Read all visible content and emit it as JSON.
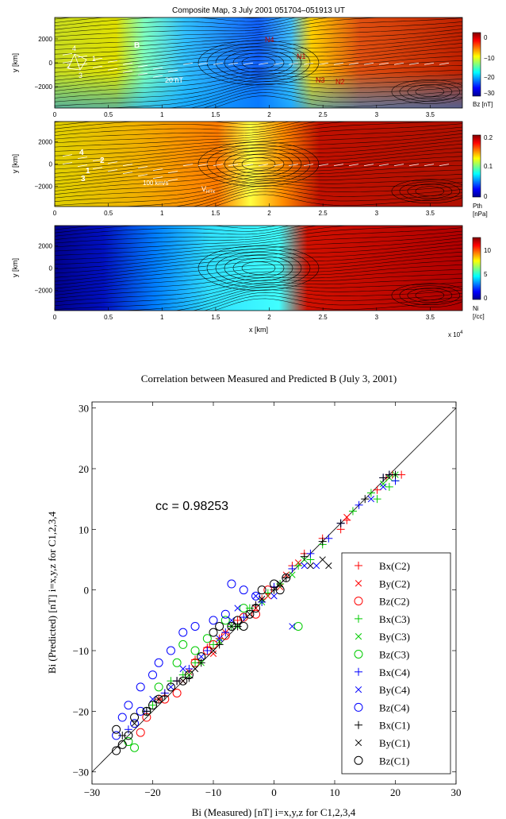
{
  "chart_data": [
    {
      "type": "heatmap",
      "title": "Composite Map,  3 July 2001  051704–051913 UT",
      "ylabel": "y [km]",
      "xlim": [
        0,
        38000
      ],
      "ylim": [
        -3800,
        3800
      ],
      "x_ticks": [
        "0",
        "0.5",
        "1",
        "1.5",
        "2",
        "2.5",
        "3",
        "3.5"
      ],
      "y_ticks": [
        "2000",
        "0",
        "−2000"
      ],
      "colorbar": {
        "label": "Bz [nT]",
        "range": [
          -30,
          10
        ],
        "ticks": [
          "0",
          "−10",
          "−20",
          "−30"
        ]
      },
      "annotations": [
        "B",
        "20 nT",
        "4",
        "2",
        "1",
        "3",
        "N4",
        "N1",
        "N3",
        "N2"
      ]
    },
    {
      "type": "heatmap",
      "ylabel": "y [km]",
      "xlim": [
        0,
        38000
      ],
      "ylim": [
        -3800,
        3800
      ],
      "x_ticks": [
        "0",
        "0.5",
        "1",
        "1.5",
        "2",
        "2.5",
        "3",
        "3.5"
      ],
      "y_ticks": [
        "2000",
        "0",
        "−2000"
      ],
      "colorbar": {
        "label": "Pth [nPa]",
        "range": [
          0,
          0.2
        ],
        "ticks": [
          "0.2",
          "0.1",
          "0"
        ]
      },
      "annotations": [
        "4",
        "2",
        "1",
        "3",
        "100 km/s",
        "V",
        "HTx"
      ]
    },
    {
      "type": "heatmap",
      "ylabel": "y [km]",
      "xlabel": "x [km]",
      "x_scale_note": "x 10",
      "x_scale_exp": "4",
      "xlim": [
        0,
        38000
      ],
      "ylim": [
        -3800,
        3800
      ],
      "x_ticks": [
        "0",
        "0.5",
        "1",
        "1.5",
        "2",
        "2.5",
        "3",
        "3.5"
      ],
      "y_ticks": [
        "2000",
        "0",
        "−2000"
      ],
      "colorbar": {
        "label": "Ni [/cc]",
        "range": [
          0,
          13
        ],
        "ticks": [
          "10",
          "5",
          "0"
        ]
      }
    },
    {
      "type": "scatter",
      "title": "Correlation between Measured and Predicted B (July 3, 2001)",
      "xlabel": "Bi (Measured) [nT] i=x,y,z for C1,2,3,4",
      "ylabel": "Bi (Predicted) [nT] i=x,y,z for C1,2,3,4",
      "xlim": [
        -30,
        30
      ],
      "ylim": [
        -32,
        31
      ],
      "x_ticks": [
        -30,
        -20,
        -10,
        0,
        10,
        20,
        30
      ],
      "y_ticks": [
        -30,
        -20,
        -10,
        0,
        10,
        20,
        30
      ],
      "x_tick_labels": [
        "−30",
        "−20",
        "−10",
        "0",
        "10",
        "20",
        "30"
      ],
      "y_tick_labels": [
        "−30",
        "−20",
        "−10",
        "0",
        "10",
        "20",
        "30"
      ],
      "annotation": "cc = 0.98253",
      "legend_position": "bottom-right",
      "series": [
        {
          "name": "Bx(C2)",
          "marker": "plus",
          "color": "#ff0000",
          "points": [
            [
              18.5,
              18.5
            ],
            [
              19.5,
              19
            ],
            [
              17,
              16.5
            ],
            [
              21,
              19
            ],
            [
              12,
              11.5
            ],
            [
              11,
              10
            ],
            [
              8,
              8.5
            ],
            [
              5,
              6
            ],
            [
              3,
              4
            ],
            [
              0,
              0.5
            ],
            [
              -2,
              -1.5
            ],
            [
              -6,
              -5
            ],
            [
              -9,
              -8
            ],
            [
              -11,
              -9.5
            ],
            [
              -13,
              -11.5
            ],
            [
              -16,
              -15
            ],
            [
              -18,
              -17
            ],
            [
              -19,
              -18
            ]
          ]
        },
        {
          "name": "By(C2)",
          "marker": "x",
          "color": "#ff0000",
          "points": [
            [
              12,
              12
            ],
            [
              2,
              2.5
            ],
            [
              -1,
              -1
            ],
            [
              -3,
              -3
            ],
            [
              -8,
              -7
            ],
            [
              -10,
              -10.5
            ],
            [
              -14,
              -13.5
            ],
            [
              -15,
              -15
            ],
            [
              4,
              4.5
            ],
            [
              1,
              0.5
            ]
          ]
        },
        {
          "name": "Bz(C2)",
          "marker": "circle",
          "color": "#ff0000",
          "points": [
            [
              -22,
              -23.5
            ],
            [
              -21,
              -21
            ],
            [
              -18,
              -18
            ],
            [
              -16,
              -17
            ],
            [
              -13,
              -12
            ],
            [
              -11,
              -10
            ],
            [
              -10,
              -9
            ],
            [
              -8,
              -7.5
            ],
            [
              -5,
              -4.5
            ],
            [
              -3,
              -4
            ],
            [
              -1,
              0
            ]
          ]
        },
        {
          "name": "Bx(C3)",
          "marker": "plus",
          "color": "#00cc00",
          "points": [
            [
              20,
              18
            ],
            [
              19,
              17
            ],
            [
              16,
              16
            ],
            [
              17,
              15
            ],
            [
              13,
              13
            ],
            [
              8,
              7.5
            ],
            [
              6,
              5
            ],
            [
              4,
              4
            ],
            [
              1,
              1
            ],
            [
              -1,
              -0.5
            ],
            [
              -4,
              -3
            ],
            [
              -7,
              -6
            ],
            [
              -10,
              -9
            ],
            [
              -13,
              -12
            ],
            [
              -15,
              -14
            ],
            [
              -17,
              -15
            ],
            [
              -20,
              -19
            ]
          ]
        },
        {
          "name": "By(C3)",
          "marker": "x",
          "color": "#00cc00",
          "points": [
            [
              18,
              17.5
            ],
            [
              19,
              18.5
            ],
            [
              20,
              19
            ],
            [
              5,
              5
            ],
            [
              3,
              2.5
            ],
            [
              -2,
              -2
            ],
            [
              -6,
              -6
            ],
            [
              -9,
              -8.5
            ],
            [
              -12,
              -12
            ],
            [
              -14,
              -14
            ]
          ]
        },
        {
          "name": "Bz(C3)",
          "marker": "circle",
          "color": "#00cc00",
          "points": [
            [
              4,
              -6
            ],
            [
              -11,
              -8
            ],
            [
              -13,
              -10
            ],
            [
              -15,
              -9
            ],
            [
              -16,
              -12
            ],
            [
              -19,
              -16
            ],
            [
              -21,
              -20
            ],
            [
              -23,
              -26
            ],
            [
              -24,
              -25
            ],
            [
              -5,
              -3
            ],
            [
              -8,
              -5
            ]
          ]
        },
        {
          "name": "Bx(C4)",
          "marker": "plus",
          "color": "#0000ff",
          "points": [
            [
              19,
              19
            ],
            [
              18,
              18.5
            ],
            [
              20,
              18
            ],
            [
              14,
              14
            ],
            [
              11,
              11
            ],
            [
              9,
              8.5
            ],
            [
              6,
              6
            ],
            [
              3,
              3.5
            ],
            [
              0,
              0.5
            ],
            [
              -2,
              -2
            ],
            [
              -5,
              -4.5
            ],
            [
              -8,
              -7
            ],
            [
              -11,
              -10
            ],
            [
              -14,
              -13
            ],
            [
              -16,
              -15
            ],
            [
              -18,
              -17
            ],
            [
              -21,
              -20
            ],
            [
              -24,
              -23
            ]
          ]
        },
        {
          "name": "By(C4)",
          "marker": "x",
          "color": "#0000ff",
          "points": [
            [
              18,
              17
            ],
            [
              16,
              15
            ],
            [
              7,
              4
            ],
            [
              3,
              -6
            ],
            [
              5,
              4
            ],
            [
              0,
              -1
            ],
            [
              -3,
              -1
            ],
            [
              -6,
              -3
            ],
            [
              -7,
              -5
            ],
            [
              -9,
              -8
            ],
            [
              -12,
              -11
            ],
            [
              -15,
              -13
            ],
            [
              -17,
              -16
            ],
            [
              -20,
              -18
            ]
          ]
        },
        {
          "name": "Bz(C4)",
          "marker": "circle",
          "color": "#0000ff",
          "points": [
            [
              -7,
              1
            ],
            [
              -5,
              0
            ],
            [
              -3,
              -1
            ],
            [
              -8,
              -4
            ],
            [
              -13,
              -6
            ],
            [
              -10,
              -5
            ],
            [
              -15,
              -7
            ],
            [
              -17,
              -10
            ],
            [
              -19,
              -12
            ],
            [
              -20,
              -14
            ],
            [
              -22,
              -16
            ],
            [
              -24,
              -19
            ],
            [
              -25,
              -21
            ],
            [
              -26,
              -24
            ],
            [
              -23,
              -22
            ],
            [
              -22,
              -20
            ]
          ]
        },
        {
          "name": "Bx(C1)",
          "marker": "plus",
          "color": "#000000",
          "points": [
            [
              19,
              19
            ],
            [
              18,
              18.5
            ],
            [
              20,
              19
            ],
            [
              15,
              15
            ],
            [
              11,
              11
            ],
            [
              8,
              8
            ],
            [
              5,
              5.5
            ],
            [
              2,
              2
            ],
            [
              0,
              0
            ],
            [
              -3,
              -2.5
            ],
            [
              -6,
              -6
            ],
            [
              -9,
              -9
            ],
            [
              -12,
              -12
            ],
            [
              -14,
              -14.5
            ],
            [
              -16,
              -15
            ],
            [
              -18,
              -17.5
            ],
            [
              -21,
              -20
            ],
            [
              -25,
              -24
            ]
          ]
        },
        {
          "name": "By(C1)",
          "marker": "x",
          "color": "#000000",
          "points": [
            [
              9,
              4
            ],
            [
              8,
              5
            ],
            [
              6,
              4
            ],
            [
              1,
              1
            ],
            [
              -2,
              -1.5
            ],
            [
              -4,
              -4
            ],
            [
              -7,
              -6
            ],
            [
              -10,
              -10
            ],
            [
              -13,
              -13
            ],
            [
              -15,
              -15
            ],
            [
              -19,
              -18
            ],
            [
              -23,
              -22
            ]
          ]
        },
        {
          "name": "Bz(C1)",
          "marker": "circle",
          "color": "#000000",
          "points": [
            [
              -26,
              -26.5
            ],
            [
              -26,
              -23
            ],
            [
              -25,
              -25.5
            ],
            [
              -24,
              -24
            ],
            [
              -23,
              -21
            ],
            [
              -21,
              -20
            ],
            [
              -20,
              -19
            ],
            [
              -19,
              -18
            ],
            [
              -17,
              -16
            ],
            [
              -15,
              -15
            ],
            [
              -14,
              -14
            ],
            [
              -12,
              -11
            ],
            [
              -10,
              -7
            ],
            [
              -9,
              -6
            ],
            [
              -7,
              -6
            ],
            [
              -6,
              -5
            ],
            [
              -5,
              -6
            ],
            [
              -4,
              -4
            ],
            [
              -3,
              -3
            ],
            [
              -2,
              0
            ],
            [
              0,
              1
            ],
            [
              1,
              0
            ],
            [
              2,
              2
            ]
          ]
        }
      ]
    }
  ]
}
